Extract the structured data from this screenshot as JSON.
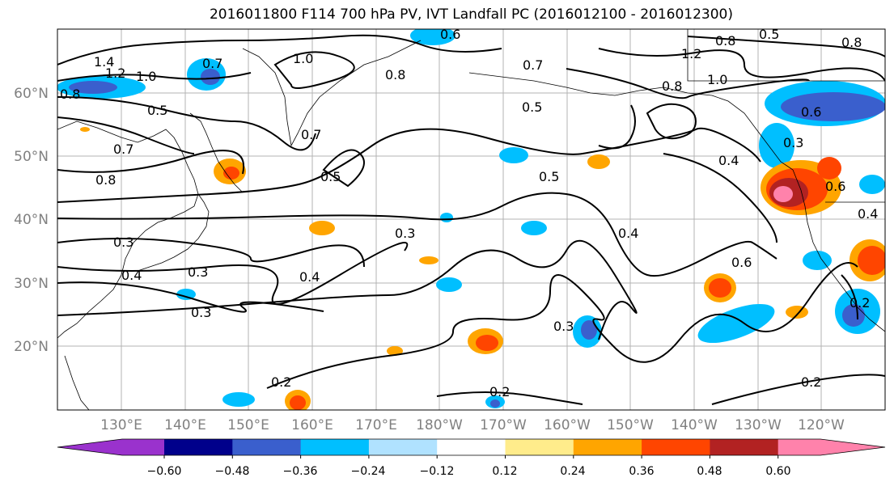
{
  "title": "2016011800 F114 700 hPa PV, IVT Landfall PC (2016012100 - 2016012300)",
  "map": {
    "region": "North Pacific",
    "lat_labels": [
      "60°N",
      "50°N",
      "40°N",
      "30°N",
      "20°N"
    ],
    "lon_labels": [
      "130°E",
      "140°E",
      "150°E",
      "160°E",
      "170°E",
      "180°W",
      "170°W",
      "160°W",
      "150°W",
      "140°W",
      "130°W",
      "120°W"
    ],
    "contour_labels": [
      "1.4",
      "1.2",
      "1.0",
      "0.8",
      "0.7",
      "0.5",
      "0.7",
      "0.8",
      "0.3",
      "0.4",
      "0.3",
      "0.3",
      "0.4",
      "0.3",
      "0.2",
      "0.6",
      "1.0",
      "0.8",
      "0.7",
      "0.5",
      "0.5",
      "0.3",
      "0.4",
      "0.5",
      "0.2",
      "0.2",
      "0.6",
      "0.7",
      "1.2",
      "1.0",
      "0.8",
      "0.8",
      "0.6",
      "0.5",
      "0.8",
      "0.4",
      "0.3",
      "0.6",
      "0.2",
      "0.4"
    ]
  },
  "colorbar": {
    "ticks": [
      "−0.60",
      "−0.48",
      "−0.36",
      "−0.24",
      "−0.12",
      "0.12",
      "0.24",
      "0.36",
      "0.48",
      "0.60"
    ],
    "colors": [
      "#9a32cd",
      "#00008b",
      "#3a5fcd",
      "#00bfff",
      "#b0e2ff",
      "#ffffff",
      "#ffec8b",
      "#ffa500",
      "#ff4500",
      "#b22222",
      "#ff82ab"
    ]
  }
}
